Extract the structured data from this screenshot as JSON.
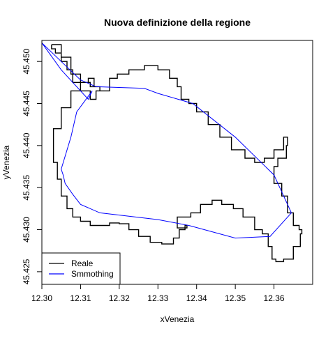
{
  "chart_data": {
    "type": "line",
    "title": "Nuova definizione della regione",
    "xlabel": "xVenezia",
    "ylabel": "yVenezia",
    "xlim": [
      12.3,
      12.37
    ],
    "ylim": [
      45.4235,
      45.4525
    ],
    "x_ticks": [
      12.3,
      12.31,
      12.32,
      12.33,
      12.34,
      12.35,
      12.36
    ],
    "x_tick_labels": [
      "12.30",
      "12.31",
      "12.32",
      "12.33",
      "12.34",
      "12.35",
      "12.36"
    ],
    "y_ticks": [
      45.425,
      45.43,
      45.435,
      45.44,
      45.445,
      45.45
    ],
    "y_tick_labels": [
      "45.425",
      "45.430",
      "45.435",
      "45.440",
      "45.445",
      "45.450"
    ],
    "grid": false,
    "legend": {
      "position": "bottom-left",
      "entries": [
        {
          "label": "Reale",
          "color": "#000000"
        },
        {
          "label": "Smmothing",
          "color": "#0000ff"
        }
      ]
    },
    "series": [
      {
        "name": "Reale",
        "color": "#000000",
        "x": [
          12.3025,
          12.305,
          12.3075,
          12.31,
          12.3125,
          12.315,
          12.3175,
          12.3195,
          12.3225,
          12.3265,
          12.33,
          12.333,
          12.335,
          12.336,
          12.338,
          12.34,
          12.343,
          12.346,
          12.349,
          12.3525,
          12.355,
          12.3575,
          12.36,
          12.3625,
          12.3635,
          12.3632,
          12.361,
          12.36,
          12.362,
          12.3635,
          12.365,
          12.3665,
          12.3672,
          12.3668,
          12.365,
          12.3625,
          12.3605,
          12.3595,
          12.3585,
          12.357,
          12.355,
          12.352,
          12.3495,
          12.3465,
          12.344,
          12.341,
          12.3385,
          12.336,
          12.335,
          12.3375,
          12.337,
          12.3355,
          12.334,
          12.331,
          12.328,
          12.325,
          12.3225,
          12.32,
          12.3175,
          12.315,
          12.3125,
          12.31,
          12.308,
          12.3065,
          12.305,
          12.304,
          12.303,
          12.303,
          12.305,
          12.3075,
          12.31,
          12.312,
          12.3135,
          12.315,
          12.314,
          12.3125,
          12.31,
          12.308,
          12.3065,
          12.305,
          12.3035,
          12.3025
        ],
        "y": [
          45.452,
          45.4505,
          45.4485,
          45.4475,
          45.447,
          45.4465,
          45.448,
          45.4485,
          45.449,
          45.4495,
          45.449,
          45.448,
          45.447,
          45.4455,
          45.445,
          45.444,
          45.4425,
          45.441,
          45.4395,
          45.4385,
          45.438,
          45.4385,
          45.4395,
          45.441,
          45.44,
          45.4385,
          45.4375,
          45.4355,
          45.434,
          45.432,
          45.4305,
          45.43,
          45.4295,
          45.428,
          45.4265,
          45.4262,
          45.4265,
          45.428,
          45.4295,
          45.43,
          45.4315,
          45.4325,
          45.433,
          45.4335,
          45.433,
          45.432,
          45.4315,
          45.4315,
          45.4302,
          45.4305,
          45.43,
          45.429,
          45.4283,
          45.4285,
          45.4292,
          45.43,
          45.4307,
          45.4308,
          45.4305,
          45.4305,
          45.431,
          45.4315,
          45.4325,
          45.434,
          45.436,
          45.438,
          45.44,
          45.442,
          45.4445,
          45.4465,
          45.4475,
          45.448,
          45.447,
          45.4465,
          45.4455,
          45.4465,
          45.4475,
          45.449,
          45.45,
          45.451,
          45.4515,
          45.452
        ]
      },
      {
        "name": "Smmothing",
        "color": "#0000ff",
        "x": [
          12.3,
          12.305,
          12.31,
          12.314,
          12.3265,
          12.33,
          12.339,
          12.35,
          12.36,
          12.3645,
          12.359,
          12.35,
          12.338,
          12.33,
          12.315,
          12.31,
          12.308,
          12.306,
          12.3055,
          12.305,
          12.3075,
          12.309,
          12.313,
          12.312,
          12.305,
          12.3
        ],
        "y": [
          45.4522,
          45.45,
          45.4478,
          45.447,
          45.4468,
          45.4462,
          45.445,
          45.441,
          45.4365,
          45.432,
          45.4292,
          45.429,
          45.4305,
          45.4312,
          45.432,
          45.433,
          45.4342,
          45.4355,
          45.4365,
          45.4372,
          45.441,
          45.444,
          45.4465,
          45.4455,
          45.449,
          45.4522
        ]
      }
    ]
  }
}
